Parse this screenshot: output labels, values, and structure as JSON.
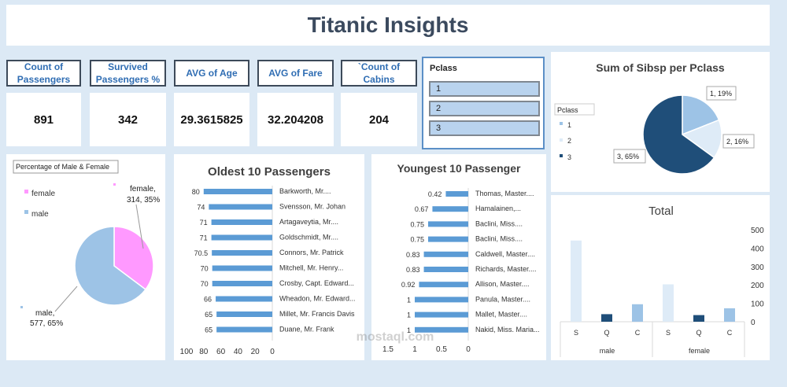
{
  "title": "Titanic Insights",
  "kpis": [
    {
      "label": "Count of Passengers",
      "value": "891"
    },
    {
      "label": "Survived Passengers %",
      "value": "342"
    },
    {
      "label": "AVG of Age",
      "value": "29.3615825"
    },
    {
      "label": "AVG of Fare",
      "value": "32.204208"
    },
    {
      "label": "`Count of Cabins",
      "value": "204"
    }
  ],
  "slicer": {
    "title": "Pclass",
    "items": [
      "1",
      "2",
      "3"
    ]
  },
  "watermark": "mostaql.com",
  "chart_data": [
    {
      "type": "pie",
      "title": "Percentage of Male & Female",
      "legend": [
        "female",
        "male"
      ],
      "legend_position": "top-left",
      "slices": [
        {
          "label": "female",
          "value": 314,
          "pct": 35,
          "color": "#ff99ff",
          "data_label": "female, 314, 35%"
        },
        {
          "label": "male",
          "value": 577,
          "pct": 65,
          "color": "#9dc3e6",
          "data_label": "male, 577, 65%"
        }
      ]
    },
    {
      "type": "bar",
      "orientation": "horizontal",
      "title": "Oldest 10 Passengers",
      "xlim": [
        0,
        100
      ],
      "x_ticks": [
        100,
        80,
        60,
        40,
        20,
        0
      ],
      "x_reversed": true,
      "color": "#5b9bd5",
      "categories": [
        "Barkworth, Mr....",
        "Svensson, Mr. Johan",
        "Artagaveytia, Mr....",
        "Goldschmidt, Mr....",
        "Connors, Mr. Patrick",
        "Mitchell, Mr. Henry...",
        "Crosby, Capt. Edward...",
        "Wheadon, Mr. Edward...",
        "Millet, Mr. Francis Davis",
        "Duane, Mr. Frank"
      ],
      "value_labels": [
        "80",
        "74",
        "71",
        "71",
        "70.5",
        "70",
        "70",
        "66",
        "65",
        "65"
      ],
      "values": [
        80,
        74,
        71,
        71,
        70.5,
        70,
        70,
        66,
        65,
        65
      ]
    },
    {
      "type": "bar",
      "orientation": "horizontal",
      "title": "Youngest 10 Passenger",
      "xlim": [
        0,
        1.5
      ],
      "x_ticks": [
        "1.5",
        "1",
        "0.5",
        "0"
      ],
      "x_reversed": true,
      "color": "#5b9bd5",
      "categories": [
        "Thomas, Master....",
        "Hamalainen,...",
        "Baclini, Miss....",
        "Baclini, Miss....",
        "Caldwell, Master....",
        "Richards, Master....",
        "Allison, Master....",
        "Panula, Master....",
        "Mallet, Master....",
        "Nakid, Miss. Maria..."
      ],
      "value_labels": [
        "0.42",
        "0.67",
        "0.75",
        "0.75",
        "0.83",
        "0.83",
        "0.92",
        "1",
        "1",
        "1"
      ],
      "values": [
        0.42,
        0.67,
        0.75,
        0.75,
        0.83,
        0.83,
        0.92,
        1,
        1,
        1
      ]
    },
    {
      "type": "pie",
      "title": "Sum of Sibsp per Pclass",
      "legend_title": "Pclass",
      "legend": [
        "1",
        "2",
        "3"
      ],
      "legend_position": "left",
      "slices": [
        {
          "label": "1",
          "pct": 19,
          "color": "#9dc3e6",
          "data_label": "1, 19%"
        },
        {
          "label": "2",
          "pct": 16,
          "color": "#deebf7",
          "data_label": "2, 16%"
        },
        {
          "label": "3",
          "pct": 65,
          "color": "#1f4e79",
          "data_label": "3, 65%"
        }
      ]
    },
    {
      "type": "bar",
      "title": "Total",
      "ylim": [
        0,
        500
      ],
      "y_ticks": [
        0,
        100,
        200,
        300,
        400,
        500
      ],
      "groups": [
        {
          "name": "male",
          "categories": [
            "S",
            "Q",
            "C"
          ],
          "values": [
            441,
            41,
            95
          ]
        },
        {
          "name": "female",
          "categories": [
            "S",
            "Q",
            "C"
          ],
          "values": [
            203,
            36,
            73
          ]
        }
      ],
      "colors": {
        "S": "#deebf7",
        "Q": "#1f4e79",
        "C": "#9dc3e6"
      }
    }
  ]
}
